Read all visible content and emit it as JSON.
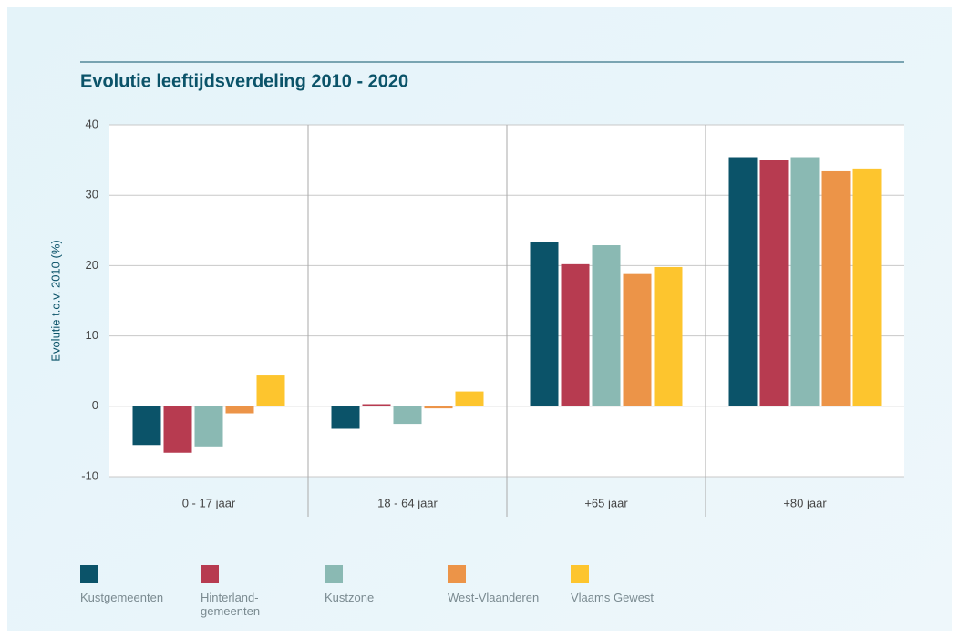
{
  "chart_data": {
    "type": "bar",
    "title": "Evolutie leeftijdsverdeling 2010 - 2020",
    "y_label": "Evolutie t.o.v. 2010 (%)",
    "categories": [
      "0 - 17 jaar",
      "18 - 64 jaar",
      "+65 jaar",
      "+80 jaar"
    ],
    "series": [
      {
        "name": "Kustgemeenten",
        "color": "#0b5369",
        "values": [
          -5.5,
          -3.2,
          23.4,
          35.4
        ]
      },
      {
        "name": "Hinterland-gemeenten",
        "color": "#b73b50",
        "values": [
          -6.6,
          0.3,
          20.2,
          35.0
        ]
      },
      {
        "name": "Kustzone",
        "color": "#8ab9b3",
        "values": [
          -5.7,
          -2.5,
          22.9,
          35.4
        ]
      },
      {
        "name": "West-Vlaanderen",
        "color": "#ec9448",
        "values": [
          -1.0,
          -0.3,
          18.8,
          33.4
        ]
      },
      {
        "name": "Vlaams Gewest",
        "color": "#fdc52e",
        "values": [
          4.5,
          2.1,
          19.8,
          33.8
        ]
      }
    ],
    "ylim": [
      -10,
      40
    ],
    "yticks": [
      -10,
      0,
      10,
      20,
      30,
      40
    ],
    "grid": true
  }
}
